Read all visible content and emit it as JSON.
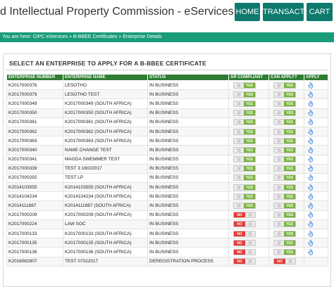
{
  "header": {
    "title": "d Intellectual Property Commission - eServices",
    "nav": [
      "HOME",
      "TRANSACT",
      "CART"
    ]
  },
  "breadcrumb": "You are here: CIPC eServices » B-BBEE Certificates » Enterprise Details",
  "panel": {
    "title": "SELECT AN ENTERPRISE TO APPLY FOR A B-BBEE CERTIFICATE"
  },
  "table": {
    "headers": [
      "ENTERPRISE NUMBER",
      "ENTERPRISE NAME",
      "STATUS",
      "AR COMPLIANT",
      "CAN APPLY?",
      "APPLY"
    ],
    "rows": [
      {
        "number": "K2017000376",
        "name": "LESOTHO",
        "status": "IN BUSINESS",
        "ar": "YES",
        "can": "YES"
      },
      {
        "number": "K2017000379",
        "name": "LESOTHO TEST",
        "status": "IN BUSINESS",
        "ar": "YES",
        "can": "YES"
      },
      {
        "number": "K2017000349",
        "name": "K2017000349 (SOUTH AFRICA)",
        "status": "IN BUSINESS",
        "ar": "YES",
        "can": "YES"
      },
      {
        "number": "K2017000350",
        "name": "K2017000350 (SOUTH AFRICA)",
        "status": "IN BUSINESS",
        "ar": "YES",
        "can": "YES"
      },
      {
        "number": "K2017000361",
        "name": "K2017000361 (SOUTH AFRICA)",
        "status": "IN BUSINESS",
        "ar": "YES",
        "can": "YES"
      },
      {
        "number": "K2017000362",
        "name": "K2017000362 (SOUTH AFRICA)",
        "status": "IN BUSINESS",
        "ar": "YES",
        "can": "YES"
      },
      {
        "number": "K2017000363",
        "name": "K2017000363 (SOUTH AFRICA)",
        "status": "IN BUSINESS",
        "ar": "YES",
        "can": "YES"
      },
      {
        "number": "K2017000340",
        "name": "NAME CHANGE TEST",
        "status": "IN BUSINESS",
        "ar": "YES",
        "can": "YES"
      },
      {
        "number": "K2017000341",
        "name": "MAGDA SWEMMER TEST",
        "status": "IN BUSINESS",
        "ar": "YES",
        "can": "YES"
      },
      {
        "number": "K2017000339",
        "name": "TEST 3 16022017",
        "status": "IN BUSINESS",
        "ar": "YES",
        "can": "YES"
      },
      {
        "number": "K2017000292",
        "name": "TEST LP",
        "status": "IN BUSINESS",
        "ar": "YES",
        "can": "YES"
      },
      {
        "number": "K2014103555",
        "name": "K2014103555 (SOUTH AFRICA)",
        "status": "IN BUSINESS",
        "ar": "YES",
        "can": "YES"
      },
      {
        "number": "K2014104234",
        "name": "K2014104234 (SOUTH AFRICA)",
        "status": "IN BUSINESS",
        "ar": "YES",
        "can": "YES"
      },
      {
        "number": "K2014111887",
        "name": "K2014111887 (SOUTH AFRICA)",
        "status": "IN BUSINESS",
        "ar": "YES",
        "can": "YES"
      },
      {
        "number": "K2017000209",
        "name": "K2017000209 (SOUTH AFRICA)",
        "status": "IN BUSINESS",
        "ar": "NO",
        "can": "YES"
      },
      {
        "number": "K2017000224",
        "name": "LAW SOC",
        "status": "IN BUSINESS",
        "ar": "NO",
        "can": "YES"
      },
      {
        "number": "K2017000133",
        "name": "K2017000133 (SOUTH AFRICA)",
        "status": "IN BUSINESS",
        "ar": "NO",
        "can": "YES"
      },
      {
        "number": "K2017000135",
        "name": "K2017000135 (SOUTH AFRICA)",
        "status": "IN BUSINESS",
        "ar": "NO",
        "can": "YES"
      },
      {
        "number": "K2017000136",
        "name": "K2017000136 (SOUTH AFRICA)",
        "status": "IN BUSINESS",
        "ar": "NO",
        "can": "YES"
      },
      {
        "number": "K2016082807",
        "name": "TEST 07022017",
        "status": "DEREGISTRATION PROCESS",
        "ar": "NO",
        "can": "NO"
      }
    ]
  },
  "colors": {
    "brand": "#0d7a6d",
    "crumbs": "#1a9b7a",
    "header_row": "#2e7d32",
    "yes": "#7cb342",
    "no": "#e53935"
  },
  "icons": {
    "apply": "hand-pointer-icon"
  }
}
